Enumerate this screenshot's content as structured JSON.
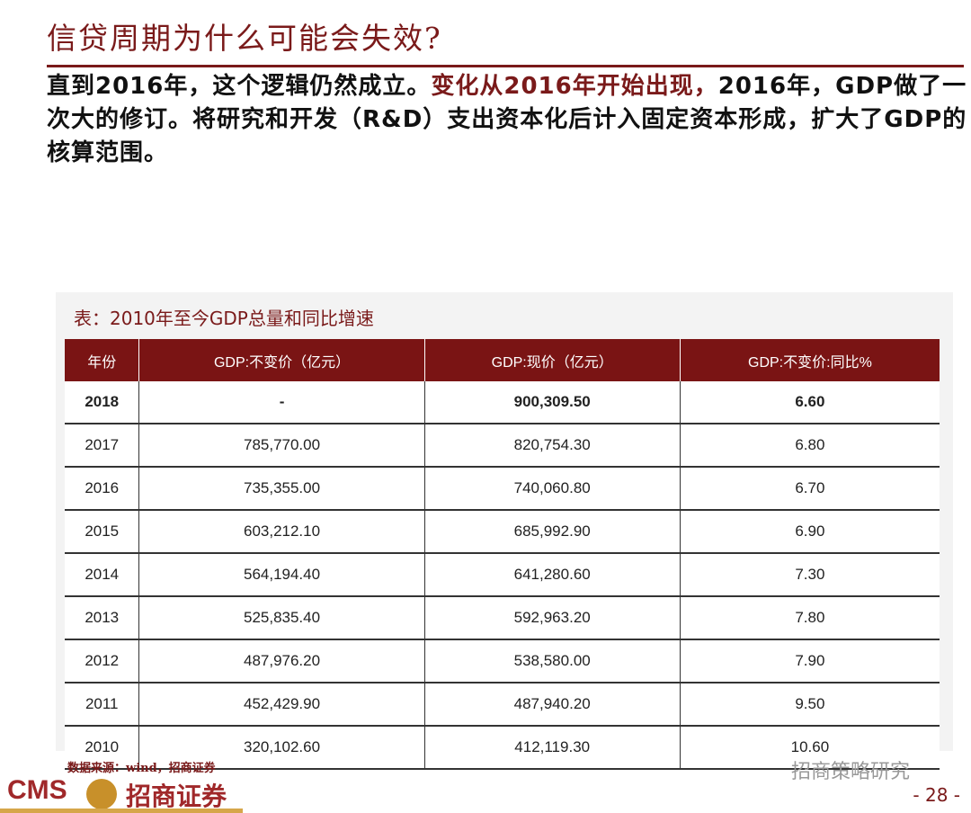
{
  "header": {
    "title": "信贷周期为什么可能会失效?"
  },
  "paragraph": [
    {
      "text": "直到2016年，这个逻辑仍然成立。",
      "color": "#111111"
    },
    {
      "text": "变化从2016年开始出现，",
      "color": "#7a1a1a"
    },
    {
      "text": "2016年，GDP做了一次大的修订。将研究和开发（R&D）支出资本化后计入固定资本形成，扩大了GDP的核算范围。",
      "color": "#111111"
    }
  ],
  "table": {
    "title": "表：2010年至今GDP总量和同比增速",
    "columns": [
      "年份",
      "GDP:不变价（亿元）",
      "GDP:现价（亿元）",
      "GDP:不变价:同比%"
    ],
    "rows": [
      [
        "2018",
        "-",
        "900,309.50",
        "6.60"
      ],
      [
        "2017",
        "785,770.00",
        "820,754.30",
        "6.80"
      ],
      [
        "2016",
        "735,355.00",
        "740,060.80",
        "6.70"
      ],
      [
        "2015",
        "603,212.10",
        "685,992.90",
        "6.90"
      ],
      [
        "2014",
        "564,194.40",
        "641,280.60",
        "7.30"
      ],
      [
        "2013",
        "525,835.40",
        "592,963.20",
        "7.80"
      ],
      [
        "2012",
        "487,976.20",
        "538,580.00",
        "7.90"
      ],
      [
        "2011",
        "452,429.90",
        "487,940.20",
        "9.50"
      ],
      [
        "2010",
        "320,102.60",
        "412,119.30",
        "10.60"
      ]
    ]
  },
  "footer": {
    "source": "数据来源：wind，招商证券",
    "logo_en": "CMS",
    "logo_cn": "招商证券",
    "watermark": "招商策略研究",
    "page": "- 28 -"
  }
}
